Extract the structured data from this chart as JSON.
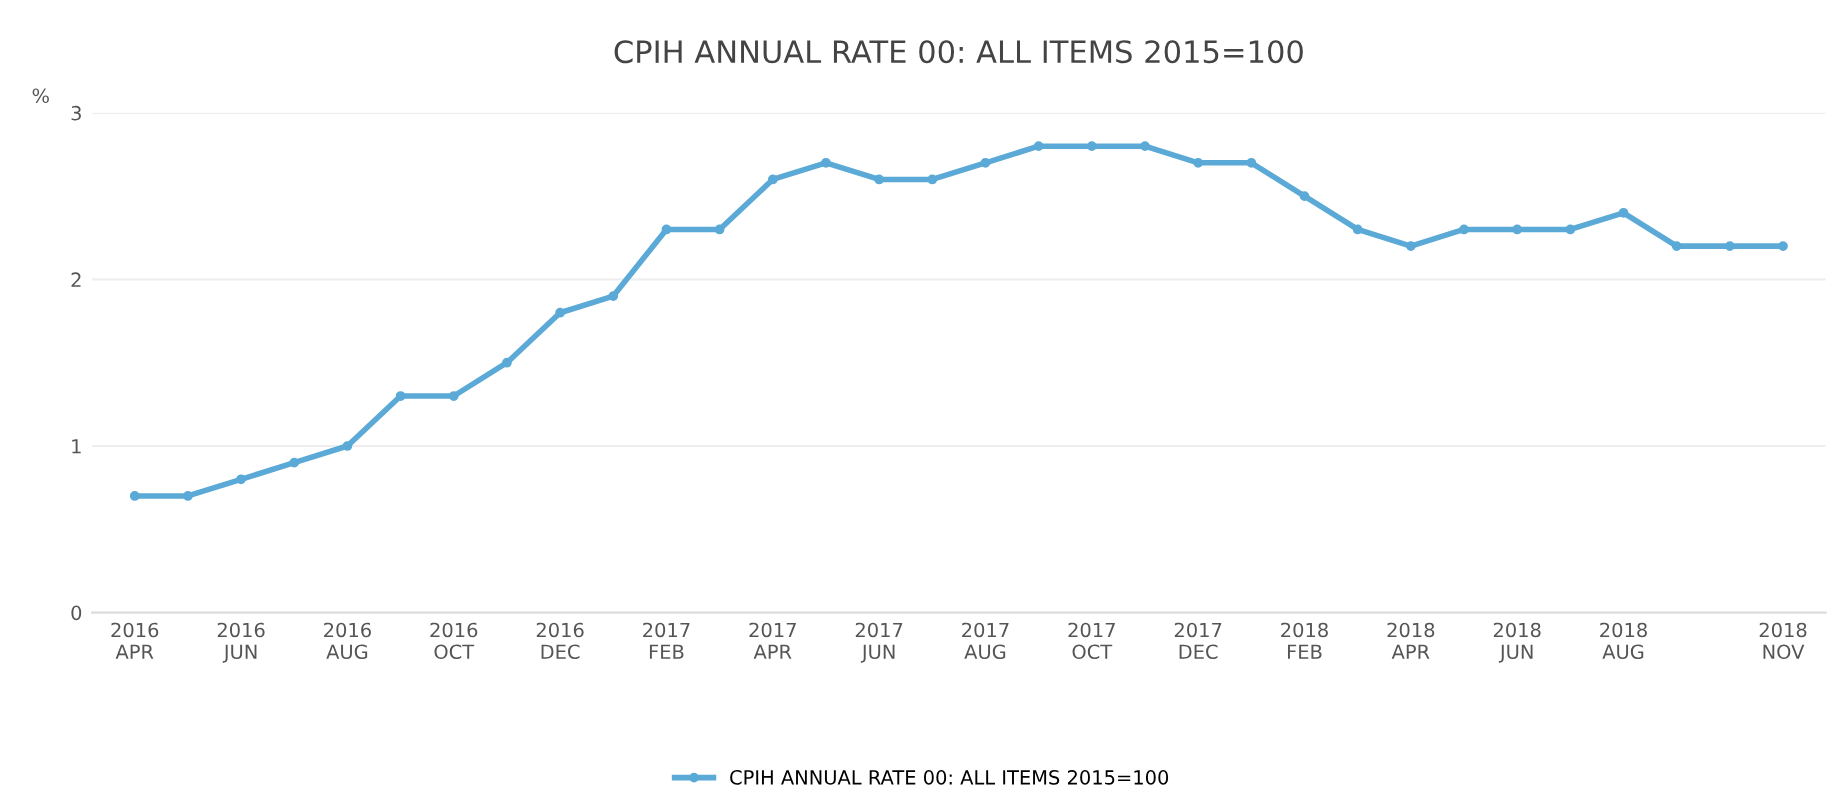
{
  "chart_data": {
    "type": "line",
    "title": "CPIH ANNUAL RATE 00: ALL ITEMS 2015=100",
    "ylabel": "%",
    "categories": [
      "2016\nAPR",
      null,
      "2016\nJUN",
      null,
      "2016\nAUG",
      null,
      "2016\nOCT",
      null,
      "2016\nDEC",
      null,
      "2017\nFEB",
      null,
      "2017\nAPR",
      null,
      "2017\nJUN",
      null,
      "2017\nAUG",
      null,
      "2017\nOCT",
      null,
      "2017\nDEC",
      null,
      "2018\nFEB",
      null,
      "2018\nAPR",
      null,
      "2018\nJUN",
      null,
      "2018\nAUG",
      null,
      null,
      "2018\nNOV"
    ],
    "series": [
      {
        "name": "CPIH ANNUAL RATE 00: ALL ITEMS 2015=100",
        "color": "#5aa9d6",
        "values": [
          0.7,
          0.7,
          0.8,
          0.9,
          1.0,
          1.3,
          1.3,
          1.5,
          1.8,
          1.9,
          2.3,
          2.3,
          2.6,
          2.7,
          2.6,
          2.6,
          2.7,
          2.8,
          2.8,
          2.8,
          2.7,
          2.7,
          2.5,
          2.3,
          2.2,
          2.3,
          2.3,
          2.3,
          2.4,
          2.2,
          2.2,
          2.2
        ]
      }
    ],
    "ylim": [
      0,
      3
    ],
    "yticks": [
      0,
      1,
      2,
      3
    ],
    "grid": "y",
    "legend": "bottom",
    "marker": "circle",
    "line_style": "solid"
  }
}
